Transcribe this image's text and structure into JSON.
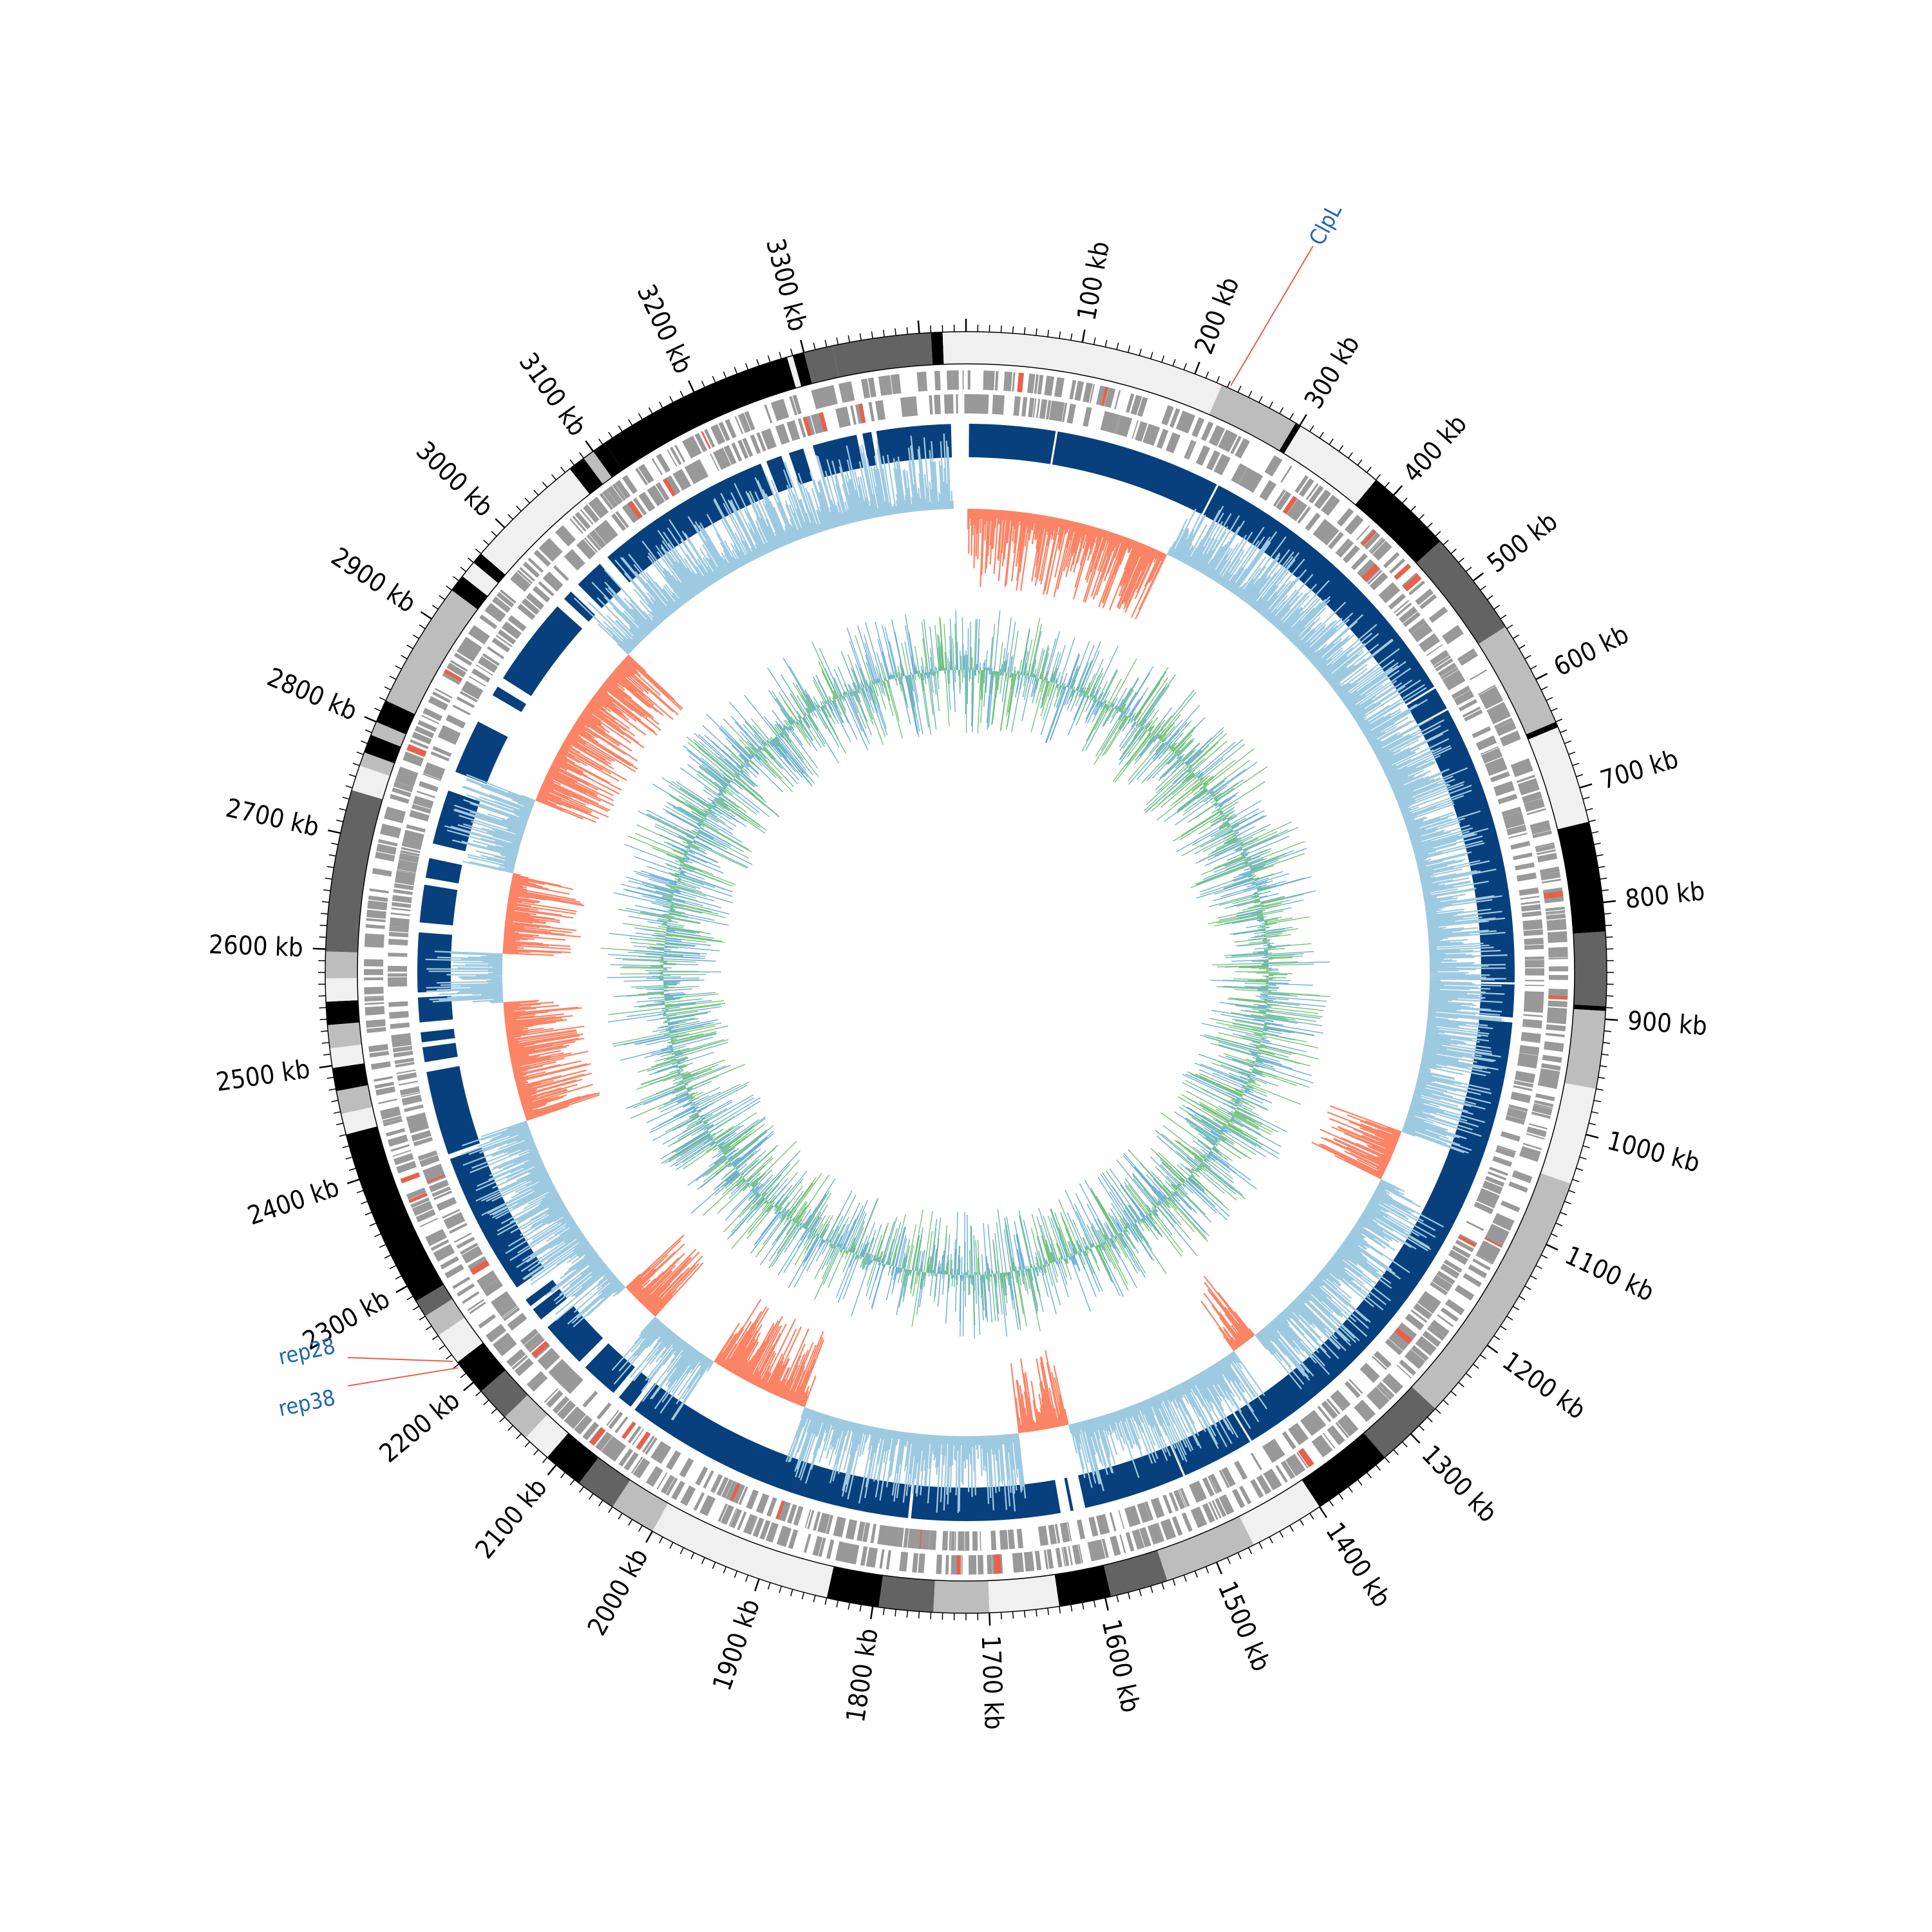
{
  "diagram": {
    "genome_size_kb": 3440,
    "position_labels": [
      "100 kb",
      "200 kb",
      "300 kb",
      "400 kb",
      "500 kb",
      "600 kb",
      "700 kb",
      "800 kb",
      "900 kb",
      "1000 kb",
      "1100 kb",
      "1200 kb",
      "1300 kb",
      "1400 kb",
      "1500 kb",
      "1600 kb",
      "1700 kb",
      "1800 kb",
      "1900 kb",
      "2000 kb",
      "2100 kb",
      "2200 kb",
      "2300 kb",
      "2400 kb",
      "2500 kb",
      "2600 kb",
      "2700 kb",
      "2800 kb",
      "2900 kb",
      "3000 kb",
      "3100 kb",
      "3200 kb",
      "3300 kb"
    ],
    "tick_positions_kb": [
      100,
      200,
      300,
      400,
      500,
      600,
      700,
      800,
      900,
      1000,
      1100,
      1200,
      1300,
      1400,
      1500,
      1600,
      1700,
      1800,
      1900,
      2000,
      2100,
      2200,
      2300,
      2400,
      2500,
      2600,
      2700,
      2800,
      2900,
      3000,
      3100,
      3200,
      3300
    ],
    "annotations": [
      {
        "label": "ClpL",
        "position_kb": 232
      },
      {
        "label": "rep28",
        "position_kb": 2225
      },
      {
        "label": "rep38",
        "position_kb": 2218
      }
    ],
    "colors": {
      "text": "#000000",
      "annotation_text": "#2166ac",
      "annotation_line": "#e8604a",
      "gene_bar": "#999999",
      "gene_highlight": "#e8604a",
      "block": "#08407e",
      "positive": "#9ecae1",
      "negative": "#fb8466",
      "skew_blue": "#6baed6",
      "skew_green": "#74c476"
    }
  }
}
